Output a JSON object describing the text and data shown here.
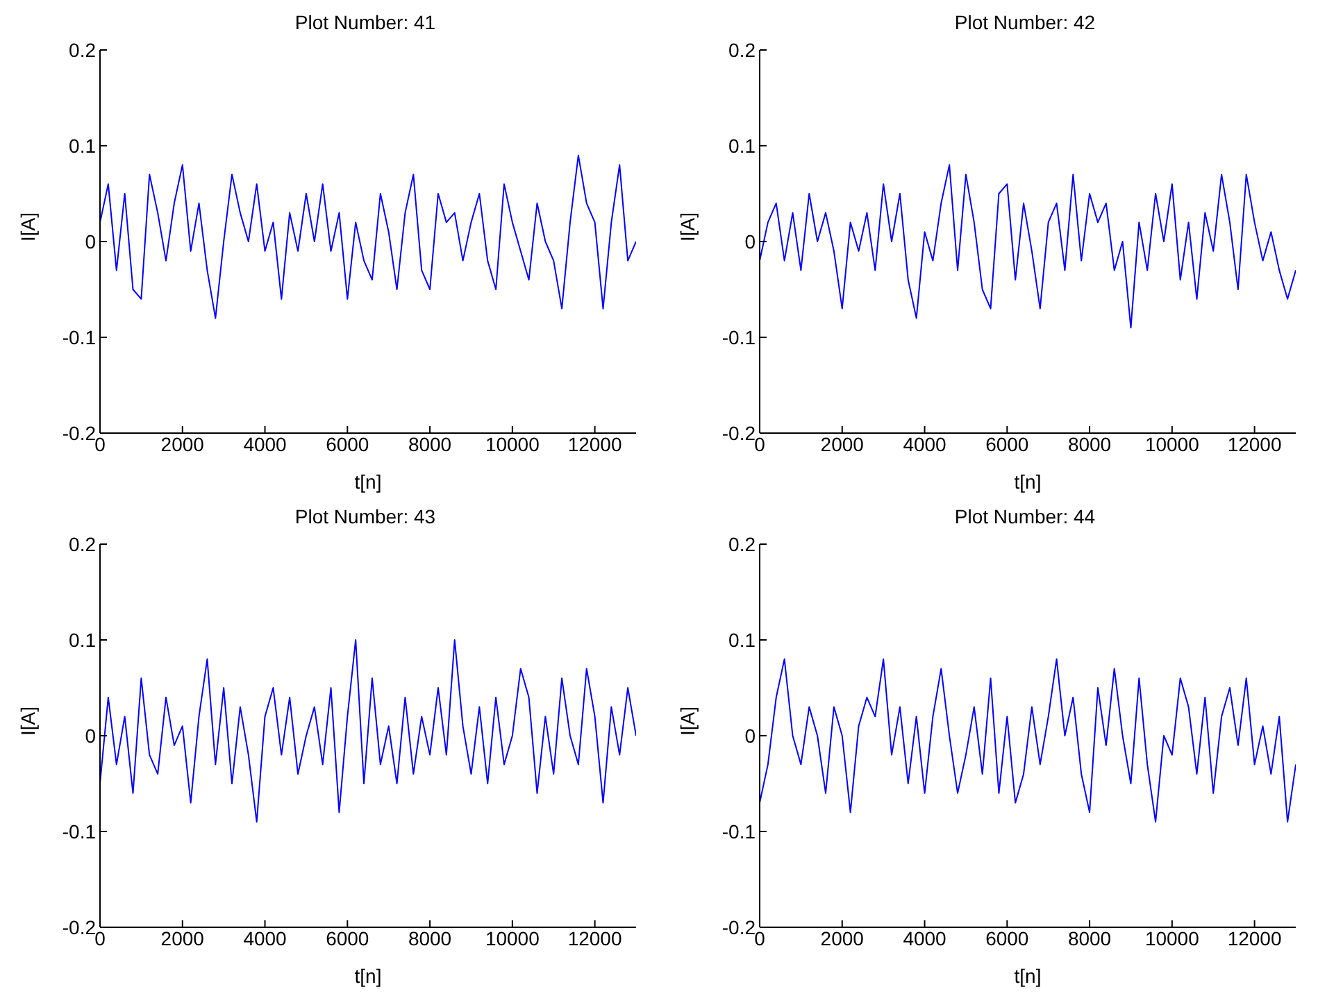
{
  "chart_data": [
    {
      "type": "line",
      "title": "Plot Number: 41",
      "xlabel": "t[n]",
      "ylabel": "I[A]",
      "xlim": [
        0,
        13000
      ],
      "xticks": [
        0,
        2000,
        4000,
        6000,
        8000,
        10000,
        12000
      ],
      "ylim": [
        -0.2,
        0.2
      ],
      "yticks": [
        -0.2,
        -0.1,
        0,
        0.1,
        0.2
      ],
      "grid": false,
      "legend": false,
      "marker": "none",
      "line_style": "solid",
      "x": [
        0,
        200,
        400,
        600,
        800,
        1000,
        1200,
        1400,
        1600,
        1800,
        2000,
        2200,
        2400,
        2600,
        2800,
        3000,
        3200,
        3400,
        3600,
        3800,
        4000,
        4200,
        4400,
        4600,
        4800,
        5000,
        5200,
        5400,
        5600,
        5800,
        6000,
        6200,
        6400,
        6600,
        6800,
        7000,
        7200,
        7400,
        7600,
        7800,
        8000,
        8200,
        8400,
        8600,
        8800,
        9000,
        9200,
        9400,
        9600,
        9800,
        10000,
        10200,
        10400,
        10600,
        10800,
        11000,
        11200,
        11400,
        11600,
        11800,
        12000,
        12200,
        12400,
        12600,
        12800,
        13000
      ],
      "series": [
        {
          "color": "#0000ff",
          "values": [
            0.02,
            0.06,
            -0.03,
            0.05,
            -0.05,
            -0.06,
            0.07,
            0.03,
            -0.02,
            0.04,
            0.08,
            -0.01,
            0.04,
            -0.03,
            -0.08,
            0.0,
            0.07,
            0.03,
            0.0,
            0.06,
            -0.01,
            0.02,
            -0.06,
            0.03,
            -0.01,
            0.05,
            0.0,
            0.06,
            -0.01,
            0.03,
            -0.06,
            0.02,
            -0.02,
            -0.04,
            0.05,
            0.01,
            -0.05,
            0.03,
            0.07,
            -0.03,
            -0.05,
            0.05,
            0.02,
            0.03,
            -0.02,
            0.02,
            0.05,
            -0.02,
            -0.05,
            0.06,
            0.02,
            -0.01,
            -0.04,
            0.04,
            0.0,
            -0.02,
            -0.07,
            0.02,
            0.09,
            0.04,
            0.02,
            -0.07,
            0.02,
            0.08,
            -0.02,
            0.0
          ]
        }
      ]
    },
    {
      "type": "line",
      "title": "Plot Number: 42",
      "xlabel": "t[n]",
      "ylabel": "I[A]",
      "xlim": [
        0,
        13000
      ],
      "xticks": [
        0,
        2000,
        4000,
        6000,
        8000,
        10000,
        12000
      ],
      "ylim": [
        -0.2,
        0.2
      ],
      "yticks": [
        -0.2,
        -0.1,
        0,
        0.1,
        0.2
      ],
      "grid": false,
      "legend": false,
      "marker": "none",
      "line_style": "solid",
      "x": [
        0,
        200,
        400,
        600,
        800,
        1000,
        1200,
        1400,
        1600,
        1800,
        2000,
        2200,
        2400,
        2600,
        2800,
        3000,
        3200,
        3400,
        3600,
        3800,
        4000,
        4200,
        4400,
        4600,
        4800,
        5000,
        5200,
        5400,
        5600,
        5800,
        6000,
        6200,
        6400,
        6600,
        6800,
        7000,
        7200,
        7400,
        7600,
        7800,
        8000,
        8200,
        8400,
        8600,
        8800,
        9000,
        9200,
        9400,
        9600,
        9800,
        10000,
        10200,
        10400,
        10600,
        10800,
        11000,
        11200,
        11400,
        11600,
        11800,
        12000,
        12200,
        12400,
        12600,
        12800,
        13000
      ],
      "series": [
        {
          "color": "#0000ff",
          "values": [
            -0.02,
            0.02,
            0.04,
            -0.02,
            0.03,
            -0.03,
            0.05,
            0.0,
            0.03,
            -0.01,
            -0.07,
            0.02,
            -0.01,
            0.03,
            -0.03,
            0.06,
            0.0,
            0.05,
            -0.04,
            -0.08,
            0.01,
            -0.02,
            0.04,
            0.08,
            -0.03,
            0.07,
            0.02,
            -0.05,
            -0.07,
            0.05,
            0.06,
            -0.04,
            0.04,
            -0.01,
            -0.07,
            0.02,
            0.04,
            -0.03,
            0.07,
            -0.02,
            0.05,
            0.02,
            0.04,
            -0.03,
            0.0,
            -0.09,
            0.02,
            -0.03,
            0.05,
            0.0,
            0.06,
            -0.04,
            0.02,
            -0.06,
            0.03,
            -0.01,
            0.07,
            0.02,
            -0.05,
            0.07,
            0.02,
            -0.02,
            0.01,
            -0.03,
            -0.06,
            -0.03
          ]
        }
      ]
    },
    {
      "type": "line",
      "title": "Plot Number: 43",
      "xlabel": "t[n]",
      "ylabel": "I[A]",
      "xlim": [
        0,
        13000
      ],
      "xticks": [
        0,
        2000,
        4000,
        6000,
        8000,
        10000,
        12000
      ],
      "ylim": [
        -0.2,
        0.2
      ],
      "yticks": [
        -0.2,
        -0.1,
        0,
        0.1,
        0.2
      ],
      "grid": false,
      "legend": false,
      "marker": "none",
      "line_style": "solid",
      "x": [
        0,
        200,
        400,
        600,
        800,
        1000,
        1200,
        1400,
        1600,
        1800,
        2000,
        2200,
        2400,
        2600,
        2800,
        3000,
        3200,
        3400,
        3600,
        3800,
        4000,
        4200,
        4400,
        4600,
        4800,
        5000,
        5200,
        5400,
        5600,
        5800,
        6000,
        6200,
        6400,
        6600,
        6800,
        7000,
        7200,
        7400,
        7600,
        7800,
        8000,
        8200,
        8400,
        8600,
        8800,
        9000,
        9200,
        9400,
        9600,
        9800,
        10000,
        10200,
        10400,
        10600,
        10800,
        11000,
        11200,
        11400,
        11600,
        11800,
        12000,
        12200,
        12400,
        12600,
        12800,
        13000
      ],
      "series": [
        {
          "color": "#0000ff",
          "values": [
            -0.05,
            0.04,
            -0.03,
            0.02,
            -0.06,
            0.06,
            -0.02,
            -0.04,
            0.04,
            -0.01,
            0.01,
            -0.07,
            0.02,
            0.08,
            -0.03,
            0.05,
            -0.05,
            0.03,
            -0.02,
            -0.09,
            0.02,
            0.05,
            -0.02,
            0.04,
            -0.04,
            0.0,
            0.03,
            -0.03,
            0.05,
            -0.08,
            0.02,
            0.1,
            -0.05,
            0.06,
            -0.03,
            0.01,
            -0.05,
            0.04,
            -0.04,
            0.02,
            -0.02,
            0.05,
            -0.02,
            0.1,
            0.01,
            -0.04,
            0.03,
            -0.05,
            0.04,
            -0.03,
            0.0,
            0.07,
            0.04,
            -0.06,
            0.02,
            -0.04,
            0.06,
            0.0,
            -0.03,
            0.07,
            0.02,
            -0.07,
            0.03,
            -0.02,
            0.05,
            0.0
          ]
        }
      ]
    },
    {
      "type": "line",
      "title": "Plot Number: 44",
      "xlabel": "t[n]",
      "ylabel": "I[A]",
      "xlim": [
        0,
        13000
      ],
      "xticks": [
        0,
        2000,
        4000,
        6000,
        8000,
        10000,
        12000
      ],
      "ylim": [
        -0.2,
        0.2
      ],
      "yticks": [
        -0.2,
        -0.1,
        0,
        0.1,
        0.2
      ],
      "grid": false,
      "legend": false,
      "marker": "none",
      "line_style": "solid",
      "x": [
        0,
        200,
        400,
        600,
        800,
        1000,
        1200,
        1400,
        1600,
        1800,
        2000,
        2200,
        2400,
        2600,
        2800,
        3000,
        3200,
        3400,
        3600,
        3800,
        4000,
        4200,
        4400,
        4600,
        4800,
        5000,
        5200,
        5400,
        5600,
        5800,
        6000,
        6200,
        6400,
        6600,
        6800,
        7000,
        7200,
        7400,
        7600,
        7800,
        8000,
        8200,
        8400,
        8600,
        8800,
        9000,
        9200,
        9400,
        9600,
        9800,
        10000,
        10200,
        10400,
        10600,
        10800,
        11000,
        11200,
        11400,
        11600,
        11800,
        12000,
        12200,
        12400,
        12600,
        12800,
        13000
      ],
      "series": [
        {
          "color": "#0000ff",
          "values": [
            -0.07,
            -0.03,
            0.04,
            0.08,
            0.0,
            -0.03,
            0.03,
            0.0,
            -0.06,
            0.03,
            0.0,
            -0.08,
            0.01,
            0.04,
            0.02,
            0.08,
            -0.02,
            0.03,
            -0.05,
            0.02,
            -0.06,
            0.02,
            0.07,
            0.0,
            -0.06,
            -0.02,
            0.03,
            -0.04,
            0.06,
            -0.06,
            0.02,
            -0.07,
            -0.04,
            0.03,
            -0.03,
            0.02,
            0.08,
            0.0,
            0.04,
            -0.04,
            -0.08,
            0.05,
            -0.01,
            0.07,
            0.0,
            -0.05,
            0.06,
            -0.03,
            -0.09,
            0.0,
            -0.02,
            0.06,
            0.03,
            -0.04,
            0.04,
            -0.06,
            0.02,
            0.05,
            -0.01,
            0.06,
            -0.03,
            0.01,
            -0.04,
            0.02,
            -0.09,
            -0.03
          ]
        }
      ]
    }
  ]
}
